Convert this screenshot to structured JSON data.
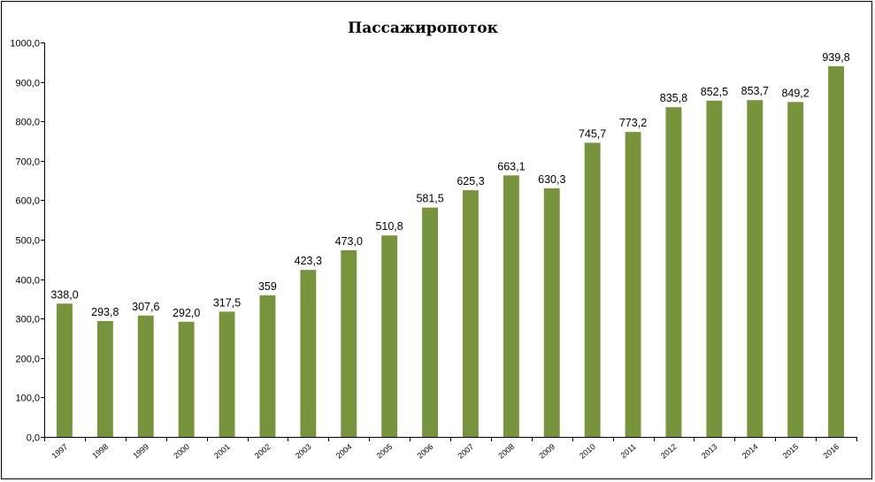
{
  "chart_data": {
    "type": "bar",
    "title": "Пассажиропоток",
    "xlabel": "",
    "ylabel": "",
    "categories": [
      "1997",
      "1998",
      "1999",
      "2000",
      "2001",
      "2002",
      "2003",
      "2004",
      "2005",
      "2006",
      "2007",
      "2008",
      "2009",
      "2010",
      "2011",
      "2012",
      "2013",
      "2014",
      "2015",
      "2016"
    ],
    "values": [
      338.0,
      293.8,
      307.6,
      292.0,
      317.5,
      359,
      423.3,
      473.0,
      510.8,
      581.5,
      625.3,
      663.1,
      630.3,
      745.7,
      773.2,
      835.8,
      852.5,
      853.7,
      849.2,
      939.8
    ],
    "data_labels": [
      "338,0",
      "293,8",
      "307,6",
      "292,0",
      "317,5",
      "359",
      "423,3",
      "473,0",
      "510,8",
      "581,5",
      "625,3",
      "663,1",
      "630,3",
      "745,7",
      "773,2",
      "835,8",
      "852,5",
      "853,7",
      "849,2",
      "939,8"
    ],
    "yticks": [
      0,
      100,
      200,
      300,
      400,
      500,
      600,
      700,
      800,
      900,
      1000
    ],
    "ytick_labels": [
      "0,0",
      "100,0",
      "200,0",
      "300,0",
      "400,0",
      "500,0",
      "600,0",
      "700,0",
      "800,0",
      "900,0",
      "1000,0"
    ],
    "ylim": [
      0,
      1000
    ],
    "grid": false,
    "legend": "none",
    "bar_color": "#77933C"
  }
}
